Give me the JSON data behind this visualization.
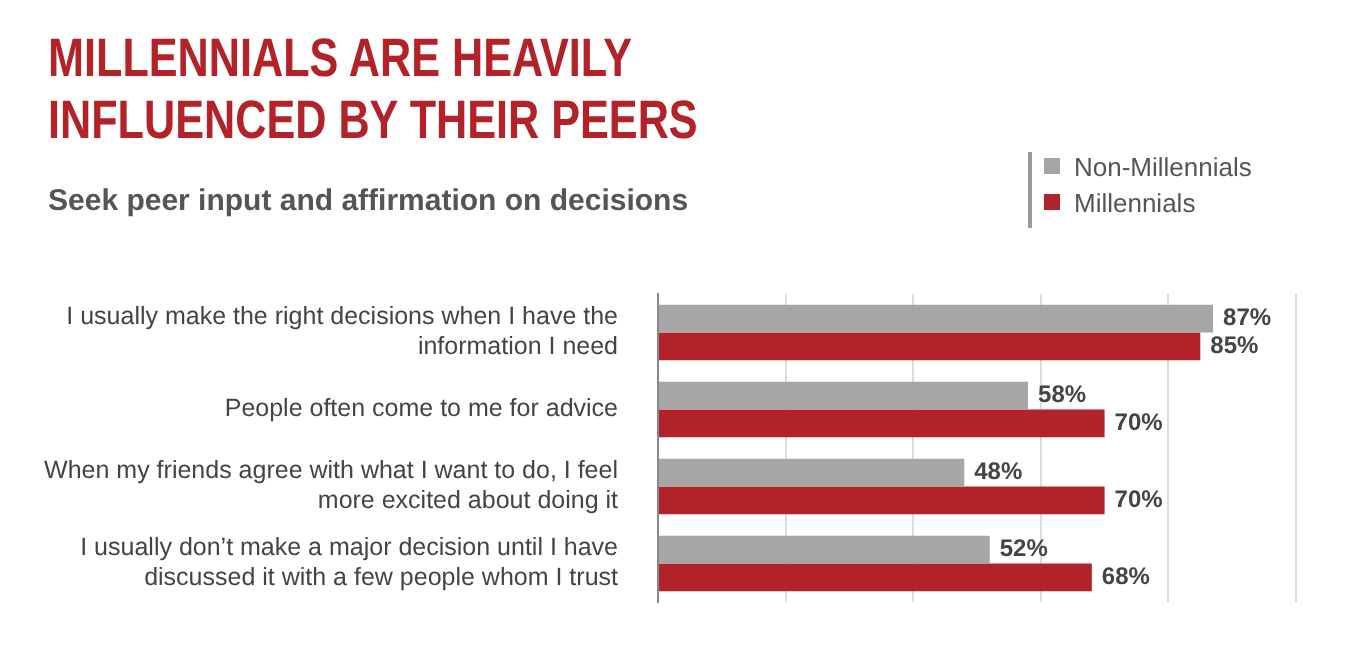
{
  "chart_data": {
    "type": "bar",
    "orientation": "horizontal",
    "title": "MILLENNIALS ARE HEAVILY INFLUENCED BY THEIR PEERS",
    "subtitle": "Seek peer input and affirmation on decisions",
    "categories": [
      "I usually make the right decisions when I have the information I need",
      "People often come to me for advice",
      "When my friends agree with what I want to do, I feel more excited about doing it",
      "I usually don’t make a major decision until I have discussed it with a few people whom I trust"
    ],
    "series": [
      {
        "name": "Non-Millennials",
        "color": "#a6a6a6",
        "values": [
          87,
          58,
          48,
          52
        ],
        "value_labels": [
          "87%",
          "58%",
          "48%",
          "52%"
        ]
      },
      {
        "name": "Millennials",
        "color": "#b22228",
        "values": [
          85,
          70,
          70,
          68
        ],
        "value_labels": [
          "85%",
          "70%",
          "70%",
          "68%"
        ]
      }
    ],
    "tick_labels": "y",
    "grid": "x",
    "legend": "top right"
  }
}
